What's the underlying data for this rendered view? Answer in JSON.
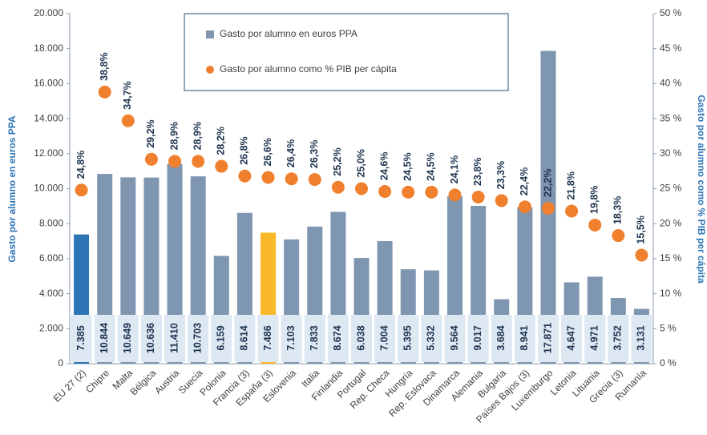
{
  "chart_data": {
    "type": "bar",
    "y_label": "Gasto  por alumno en euros PPA",
    "y2_label": "Gasto por alumno como % PIB per cápita",
    "categories": [
      "EU 27 (2)",
      "Chipre",
      "Malta",
      "Bélgica",
      "Austria",
      "Suecia",
      "Polonia",
      "Francia (3)",
      "España (3)",
      "Eslovenia",
      "Italia",
      "Finlandia",
      "Portugal",
      "Rep. Checa",
      "Hungría",
      "Rep. Eslovaca",
      "Dinamarca",
      "Alemania",
      "Bulgaria",
      "Países Bajos (3)",
      "Luxemburgo",
      "Letonia",
      "Lituania",
      "Grecia (3)",
      "Rumanía"
    ],
    "series": [
      {
        "name": "Gasto por alumno en euros PPA",
        "type": "bar",
        "color": "#7f96b1",
        "colors": [
          "#2e75b6",
          "#7f96b1",
          "#7f96b1",
          "#7f96b1",
          "#7f96b1",
          "#7f96b1",
          "#7f96b1",
          "#7f96b1",
          "#f9b928",
          "#7f96b1",
          "#7f96b1",
          "#7f96b1",
          "#7f96b1",
          "#7f96b1",
          "#7f96b1",
          "#7f96b1",
          "#7f96b1",
          "#7f96b1",
          "#7f96b1",
          "#7f96b1",
          "#7f96b1",
          "#7f96b1",
          "#7f96b1",
          "#7f96b1",
          "#7f96b1"
        ],
        "values": [
          7385,
          10844,
          10649,
          10636,
          11410,
          10703,
          6159,
          8614,
          7486,
          7103,
          7833,
          8674,
          6038,
          7004,
          5395,
          5332,
          9564,
          9017,
          3684,
          8941,
          17871,
          4647,
          4971,
          3752,
          3131
        ],
        "value_labels": [
          "7.385",
          "10.844",
          "10.649",
          "10.636",
          "11.410",
          "10.703",
          "6.159",
          "8.614",
          "7.486",
          "7.103",
          "7.833",
          "8.674",
          "6.038",
          "7.004",
          "5.395",
          "5.332",
          "9.564",
          "9.017",
          "3.684",
          "8.941",
          "17.871",
          "4.647",
          "4.971",
          "3.752",
          "3.131"
        ]
      },
      {
        "name": "Gasto por alumno como % PIB per cápita",
        "type": "scatter",
        "axis": "y2",
        "color": "#f0802d",
        "values": [
          24.8,
          38.8,
          34.7,
          29.2,
          28.9,
          28.9,
          28.2,
          26.8,
          26.6,
          26.4,
          26.3,
          25.2,
          25.0,
          24.6,
          24.5,
          24.5,
          24.1,
          23.8,
          23.3,
          22.4,
          22.2,
          21.8,
          19.8,
          18.3,
          15.5
        ],
        "value_labels": [
          "24,8%",
          "38,8%",
          "34,7%",
          "29,2%",
          "28,9%",
          "28,9%",
          "28,2%",
          "26,8%",
          "26,6%",
          "26,4%",
          "26,3%",
          "25,2%",
          "25,0%",
          "24,6%",
          "24,5%",
          "24,5%",
          "24,1%",
          "23,8%",
          "23,3%",
          "22,4%",
          "22,2%",
          "21,8%",
          "19,8%",
          "18,3%",
          "15,5%"
        ]
      }
    ],
    "ylim": [
      0,
      20000
    ],
    "yticks": [
      0,
      {
        "value": 2000,
        "label": "2.000"
      },
      {
        "value": 4000,
        "label": "4.000"
      },
      {
        "value": 6000,
        "label": "6.000"
      },
      {
        "value": 8000,
        "label": "8.000"
      },
      {
        "value": 10000,
        "label": "10.000"
      },
      {
        "value": 12000,
        "label": "12.000"
      },
      {
        "value": 14000,
        "label": "14.000"
      },
      {
        "value": 16000,
        "label": "16.000"
      },
      {
        "value": 18000,
        "label": "18.000"
      },
      {
        "value": 20000,
        "label": "20.000"
      }
    ],
    "y2lim": [
      0,
      50
    ],
    "y2ticks": [
      {
        "value": 0,
        "label": "0 %"
      },
      {
        "value": 5,
        "label": "5 %"
      },
      {
        "value": 10,
        "label": "10 %"
      },
      {
        "value": 15,
        "label": "15 %"
      },
      {
        "value": 20,
        "label": "20 %"
      },
      {
        "value": 25,
        "label": "25 %"
      },
      {
        "value": 30,
        "label": "30 %"
      },
      {
        "value": 35,
        "label": "35 %"
      },
      {
        "value": 40,
        "label": "40 %"
      },
      {
        "value": 45,
        "label": "45 %"
      },
      {
        "value": 50,
        "label": "50 %"
      }
    ],
    "grid": false,
    "legend": "top"
  }
}
